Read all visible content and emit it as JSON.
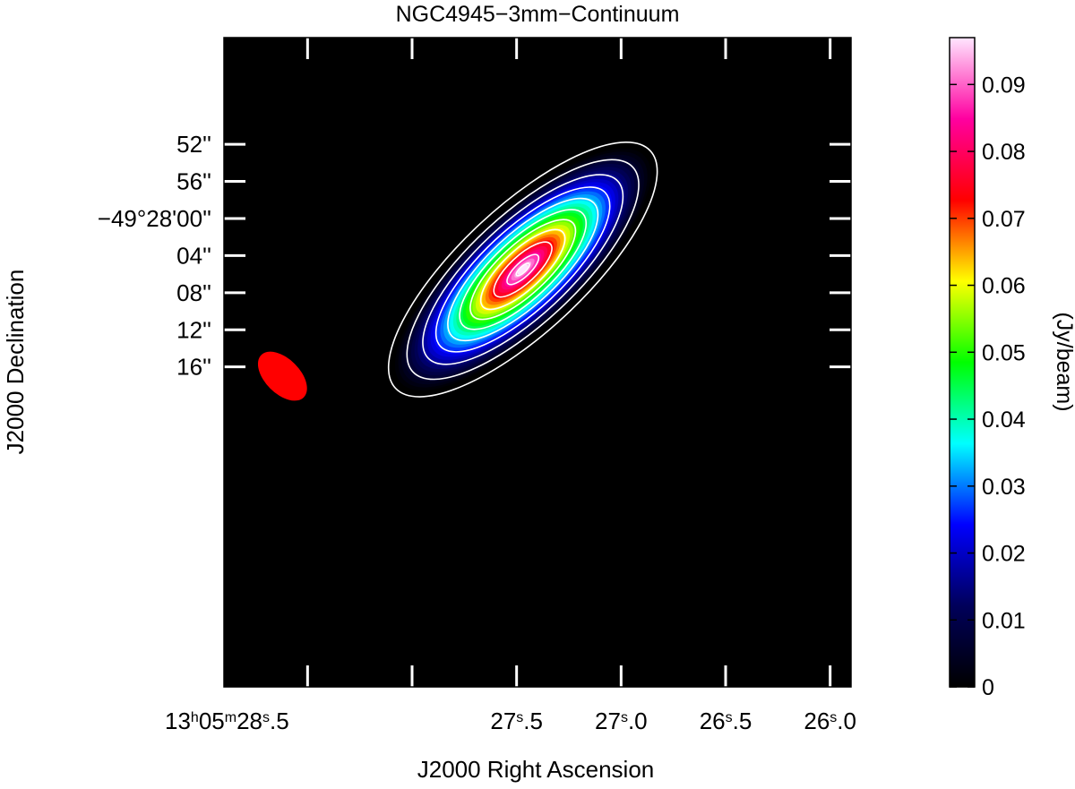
{
  "chart_data": {
    "type": "heatmap",
    "title": "NGC4945−3mm−Continuum",
    "xlabel": "J2000 Right Ascension",
    "ylabel": "J2000 Declination",
    "colorbar_label": "(Jy/beam)",
    "x_axis": {
      "unit": "seconds of RA (13h05m)",
      "range": [
        28.9,
        25.9
      ],
      "reversed": true,
      "ticks": [
        {
          "value": 28.5,
          "label": {
            "h": "13",
            "m": "05",
            "s": "28",
            "frac": ".5"
          }
        },
        {
          "value": 28.0,
          "label": null
        },
        {
          "value": 27.5,
          "label": {
            "h": "",
            "m": "",
            "s": "27",
            "frac": ".5"
          }
        },
        {
          "value": 27.0,
          "label": {
            "h": "",
            "m": "",
            "s": "27",
            "frac": ".0"
          }
        },
        {
          "value": 26.5,
          "label": {
            "h": "",
            "m": "",
            "s": "26",
            "frac": ".5"
          }
        },
        {
          "value": 26.0,
          "label": {
            "h": "",
            "m": "",
            "s": "26",
            "frac": ".0"
          }
        }
      ]
    },
    "y_axis": {
      "unit": "arcsec offset from -49°28'00\"",
      "range": [
        -19.5,
        50.5
      ],
      "ticks": [
        {
          "value": 52,
          "label": "52''"
        },
        {
          "value": 56,
          "label": "56''"
        },
        {
          "value": 0,
          "label": "−49°28'00''"
        },
        {
          "value": 4,
          "label": "04''"
        },
        {
          "value": 8,
          "label": "08''"
        },
        {
          "value": 12,
          "label": "12''"
        },
        {
          "value": 16,
          "label": "16''"
        }
      ]
    },
    "colorbar": {
      "range": [
        0,
        0.097
      ],
      "ticks": [
        {
          "value": 0,
          "label": "0"
        },
        {
          "value": 0.01,
          "label": "0.01"
        },
        {
          "value": 0.02,
          "label": "0.02"
        },
        {
          "value": 0.03,
          "label": "0.03"
        },
        {
          "value": 0.04,
          "label": "0.04"
        },
        {
          "value": 0.05,
          "label": "0.05"
        },
        {
          "value": 0.06,
          "label": "0.06"
        },
        {
          "value": 0.07,
          "label": "0.07"
        },
        {
          "value": 0.08,
          "label": "0.08"
        },
        {
          "value": 0.09,
          "label": "0.09"
        }
      ],
      "colors": [
        "#000000",
        "#00005a",
        "#0000ff",
        "#00ffff",
        "#00ff00",
        "#ffff00",
        "#ff0000",
        "#ff00a0",
        "#ffe6ff"
      ]
    },
    "source": {
      "peak_ra_s": 27.47,
      "peak_dec_offset": 5.5,
      "peak_flux": 0.097,
      "position_angle_deg": 43,
      "major_fwhm_arcsec": 16,
      "minor_fwhm_arcsec": 4.5
    },
    "beam": {
      "ra_s": 28.62,
      "dec_offset": 17.0,
      "major_arcsec": 3.8,
      "minor_arcsec": 2.2,
      "color": "#ff0000"
    },
    "contour_color": "#ffffff",
    "colormap": "rainbow"
  }
}
